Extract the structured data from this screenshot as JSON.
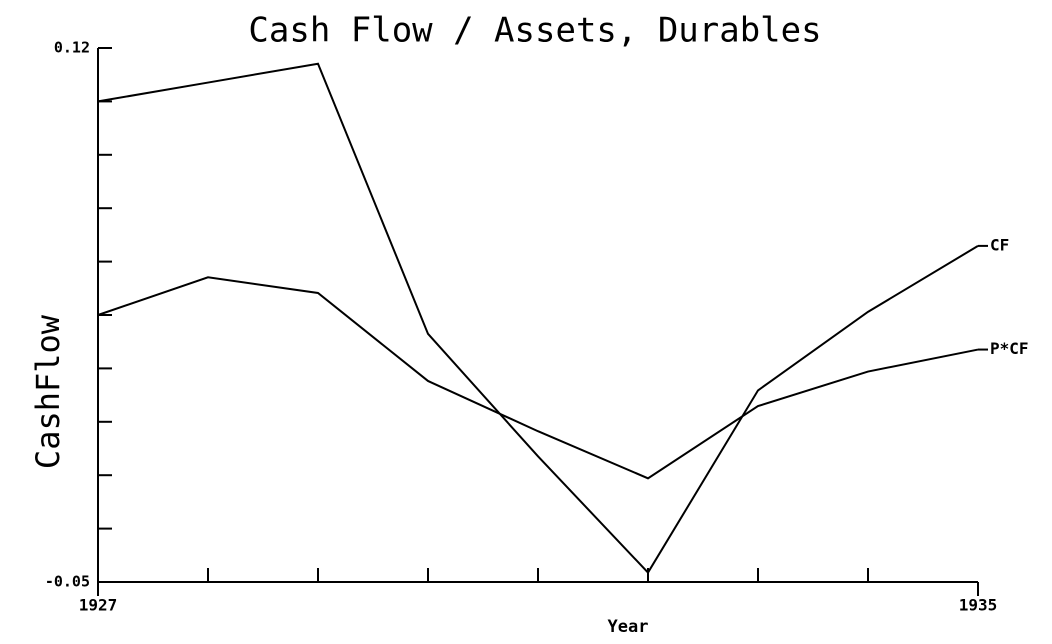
{
  "chart_data": {
    "type": "line",
    "title": "Cash Flow / Assets, Durables",
    "xlabel": "Year",
    "ylabel": "CashFlow",
    "x": [
      1927,
      1928,
      1929,
      1930,
      1931,
      1932,
      1933,
      1934,
      1935
    ],
    "series": [
      {
        "name": "CF",
        "color": "#000000",
        "values": [
          0.103,
          0.109,
          0.115,
          0.029,
          -0.01,
          -0.047,
          0.011,
          0.036,
          0.057
        ]
      },
      {
        "name": "P*CF",
        "color": "#000000",
        "values": [
          0.035,
          0.047,
          0.042,
          0.014,
          -0.002,
          -0.017,
          0.006,
          0.017,
          0.024
        ]
      }
    ],
    "xlim": [
      1927,
      1935
    ],
    "xticks": [
      1927,
      1935
    ],
    "xminorticks": [
      1928,
      1929,
      1930,
      1931,
      1932,
      1933,
      1934
    ],
    "ylim": [
      -0.05,
      0.12
    ],
    "yticks": [
      -0.05,
      0.12
    ],
    "yminorticks": [
      -0.033,
      -0.016,
      0.001,
      0.018,
      0.035,
      0.052,
      0.069,
      0.086,
      0.103
    ],
    "grid": false
  }
}
